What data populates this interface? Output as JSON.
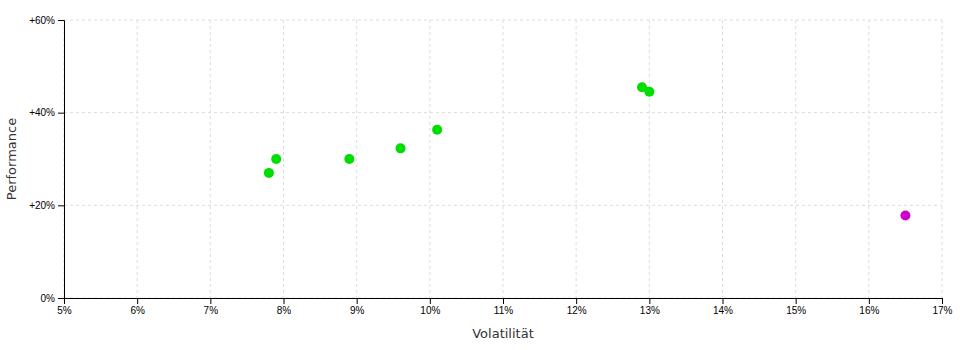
{
  "chart_data": {
    "type": "scatter",
    "xlabel": "Volatilität",
    "ylabel": "Performance",
    "series": [
      {
        "color": "#00dd00",
        "x": [
          0.079,
          0.078,
          0.089,
          0.096,
          0.101,
          0.129,
          0.13
        ],
        "values": [
          0.3,
          0.27,
          0.3,
          0.323,
          0.363,
          0.455,
          0.445
        ]
      },
      {
        "color": "#cc00cc",
        "x": [
          0.165
        ],
        "values": [
          0.178
        ]
      }
    ],
    "xlim": [
      0.05,
      0.17
    ],
    "ylim": [
      0.0,
      0.6
    ],
    "xticks": [
      {
        "value": 0.05,
        "label": "5%"
      },
      {
        "value": 0.06,
        "label": "6%"
      },
      {
        "value": 0.07,
        "label": "7%"
      },
      {
        "value": 0.08,
        "label": "8%"
      },
      {
        "value": 0.09,
        "label": "9%"
      },
      {
        "value": 0.1,
        "label": "10%"
      },
      {
        "value": 0.11,
        "label": "11%"
      },
      {
        "value": 0.12,
        "label": "12%"
      },
      {
        "value": 0.13,
        "label": "13%"
      },
      {
        "value": 0.14,
        "label": "14%"
      },
      {
        "value": 0.15,
        "label": "15%"
      },
      {
        "value": 0.16,
        "label": "16%"
      },
      {
        "value": 0.17,
        "label": "17%"
      }
    ],
    "yticks": [
      {
        "value": 0.0,
        "label": "0%"
      },
      {
        "value": 0.2,
        "label": "+20%"
      },
      {
        "value": 0.4,
        "label": "+40%"
      },
      {
        "value": 0.6,
        "label": "+60%"
      }
    ],
    "grid": true
  }
}
